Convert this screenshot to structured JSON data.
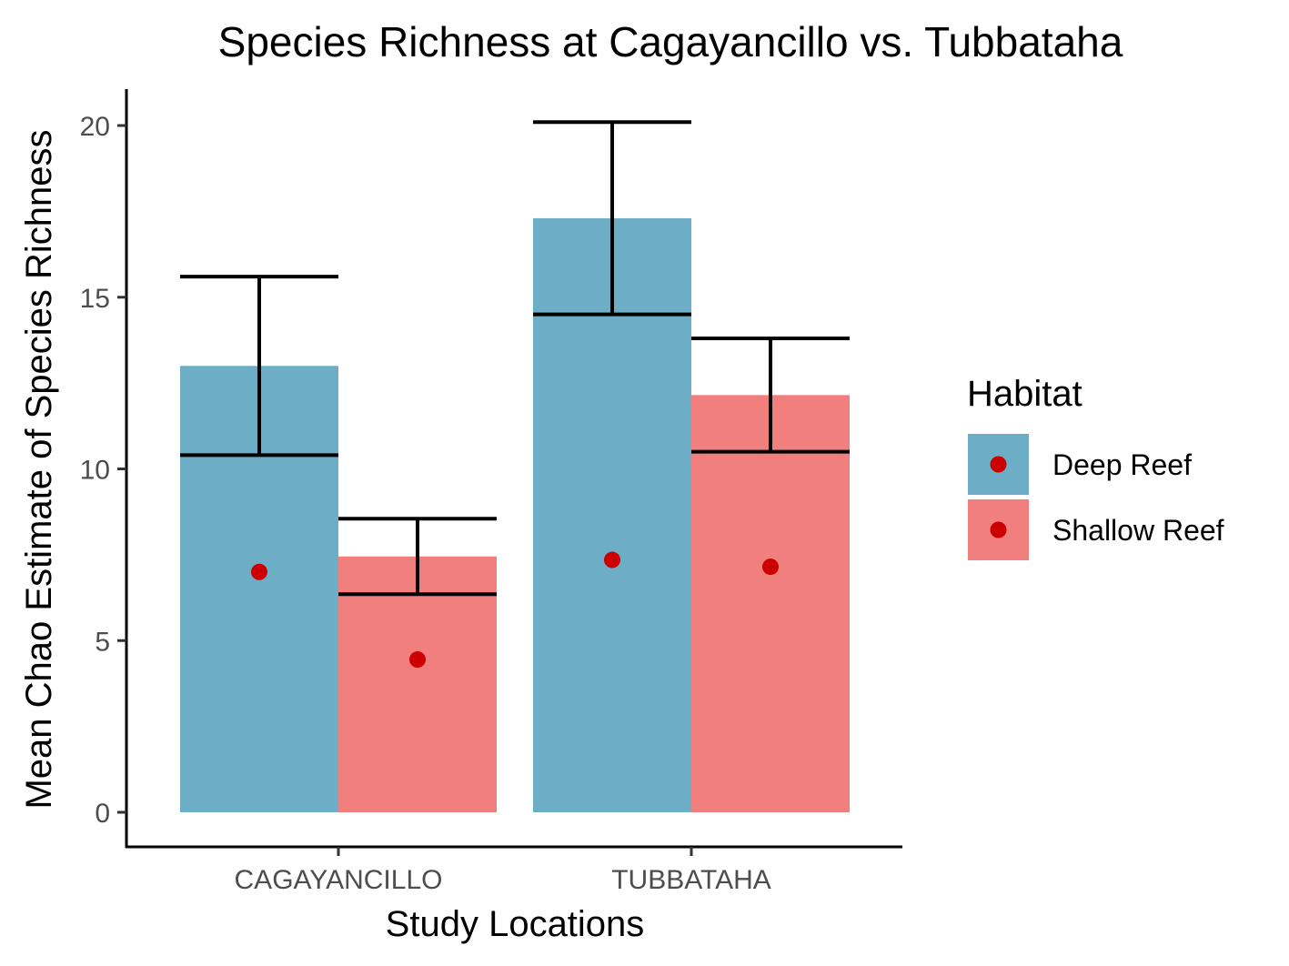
{
  "chart_data": {
    "type": "bar",
    "title": "Species Richness at Cagayancillo vs. Tubbataha",
    "xlabel": "Study Locations",
    "ylabel": "Mean Chao Estimate of Species Richness",
    "categories": [
      "CAGAYANCILLO",
      "TUBBATAHA"
    ],
    "ylim": [
      -1,
      20.9
    ],
    "yticks": [
      "0",
      "5",
      "10",
      "15",
      "20"
    ],
    "grid": false,
    "legend": {
      "title": "Habitat",
      "position": "right"
    },
    "series": [
      {
        "name": "Deep Reef",
        "color": "#6eadc6",
        "values": [
          13.0,
          17.3
        ],
        "error_low": [
          10.4,
          14.5
        ],
        "error_high": [
          15.6,
          20.1
        ],
        "points": [
          7.0,
          7.35
        ]
      },
      {
        "name": "Shallow Reef",
        "color": "#f07f7d",
        "values": [
          7.45,
          12.15
        ],
        "error_low": [
          6.35,
          10.5
        ],
        "error_high": [
          8.55,
          13.8
        ],
        "points": [
          4.45,
          7.15
        ]
      }
    ],
    "point_color": "#cc0000",
    "errorbar_color": "#000000"
  }
}
